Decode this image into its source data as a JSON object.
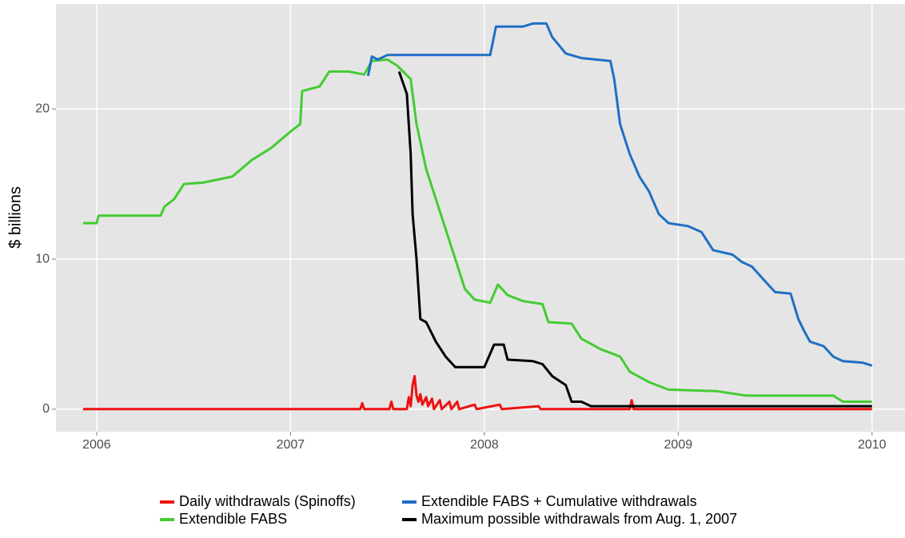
{
  "chart_data": {
    "type": "line",
    "y_label": "$ billions",
    "xlim": [
      2005.79,
      2010.17
    ],
    "ylim": [
      -1.5,
      27.0
    ],
    "xticks": [
      2006,
      2007,
      2008,
      2009,
      2010
    ],
    "yticks": [
      0,
      10,
      20
    ],
    "grid": true,
    "series": [
      {
        "name": "Daily withdrawals (Spinoffs)",
        "color": "#ee1111",
        "x": [
          2005.93,
          2007.36,
          2007.37,
          2007.38,
          2007.51,
          2007.52,
          2007.53,
          2007.6,
          2007.61,
          2007.62,
          2007.63,
          2007.64,
          2007.65,
          2007.66,
          2007.67,
          2007.68,
          2007.7,
          2007.71,
          2007.73,
          2007.74,
          2007.77,
          2007.78,
          2007.82,
          2007.83,
          2007.86,
          2007.87,
          2007.95,
          2007.96,
          2008.08,
          2008.09,
          2008.28,
          2008.29,
          2008.75,
          2008.76,
          2008.77,
          2010.0
        ],
        "values": [
          0,
          0,
          0.4,
          0,
          0,
          0.5,
          0,
          0,
          0.8,
          0.2,
          1.6,
          2.2,
          0.9,
          0.5,
          1.0,
          0.3,
          0.8,
          0.2,
          0.7,
          0,
          0.6,
          0,
          0.5,
          0,
          0.5,
          0,
          0.3,
          0,
          0.3,
          0,
          0.2,
          0,
          0,
          0.6,
          0,
          0
        ]
      },
      {
        "name": "Extendible FABS",
        "color": "#44cc33",
        "x": [
          2005.93,
          2006.0,
          2006.01,
          2006.33,
          2006.35,
          2006.4,
          2006.45,
          2006.55,
          2006.7,
          2006.8,
          2006.9,
          2007.0,
          2007.05,
          2007.06,
          2007.15,
          2007.2,
          2007.3,
          2007.38,
          2007.42,
          2007.5,
          2007.55,
          2007.62,
          2007.65,
          2007.7,
          2007.75,
          2007.8,
          2007.85,
          2007.9,
          2007.95,
          2008.03,
          2008.07,
          2008.12,
          2008.2,
          2008.3,
          2008.33,
          2008.45,
          2008.5,
          2008.6,
          2008.7,
          2008.75,
          2008.85,
          2008.95,
          2009.2,
          2009.35,
          2009.8,
          2009.85,
          2010.0
        ],
        "values": [
          12.4,
          12.4,
          12.9,
          12.9,
          13.5,
          14.0,
          15.0,
          15.1,
          15.5,
          16.6,
          17.4,
          18.5,
          19.0,
          21.2,
          21.5,
          22.5,
          22.5,
          22.3,
          23.2,
          23.3,
          22.9,
          22.0,
          19.0,
          16.0,
          14.0,
          12.0,
          10.0,
          8.0,
          7.3,
          7.1,
          8.3,
          7.6,
          7.2,
          7.0,
          5.8,
          5.7,
          4.7,
          4.0,
          3.5,
          2.5,
          1.8,
          1.3,
          1.2,
          0.9,
          0.9,
          0.5,
          0.5
        ]
      },
      {
        "name": "Extendible FABS + Cumulative withdrawals",
        "color": "#1f6fc5",
        "x": [
          2007.4,
          2007.42,
          2007.45,
          2007.5,
          2008.03,
          2008.06,
          2008.2,
          2008.25,
          2008.32,
          2008.35,
          2008.42,
          2008.5,
          2008.65,
          2008.67,
          2008.7,
          2008.75,
          2008.8,
          2008.85,
          2008.9,
          2008.95,
          2009.05,
          2009.12,
          2009.18,
          2009.28,
          2009.33,
          2009.38,
          2009.45,
          2009.5,
          2009.58,
          2009.62,
          2009.65,
          2009.68,
          2009.75,
          2009.8,
          2009.85,
          2009.95,
          2010.0
        ],
        "values": [
          22.2,
          23.5,
          23.3,
          23.6,
          23.6,
          25.5,
          25.5,
          25.7,
          25.7,
          24.8,
          23.7,
          23.4,
          23.2,
          22.0,
          19.0,
          17.0,
          15.5,
          14.5,
          13.0,
          12.4,
          12.2,
          11.8,
          10.6,
          10.3,
          9.8,
          9.5,
          8.5,
          7.8,
          7.7,
          6.0,
          5.2,
          4.5,
          4.2,
          3.5,
          3.2,
          3.1,
          2.9
        ]
      },
      {
        "name": "Maximum possible withdrawals from Aug. 1, 2007",
        "color": "#000000",
        "x": [
          2007.56,
          2007.6,
          2007.62,
          2007.63,
          2007.65,
          2007.67,
          2007.7,
          2007.75,
          2007.8,
          2007.85,
          2008.0,
          2008.05,
          2008.1,
          2008.12,
          2008.25,
          2008.3,
          2008.35,
          2008.42,
          2008.45,
          2008.5,
          2008.55,
          2010.0
        ],
        "values": [
          22.5,
          21.0,
          17.0,
          13.0,
          10.0,
          6.0,
          5.8,
          4.5,
          3.5,
          2.8,
          2.8,
          4.3,
          4.3,
          3.3,
          3.2,
          3.0,
          2.2,
          1.6,
          0.5,
          0.5,
          0.2,
          0.2
        ]
      }
    ]
  }
}
